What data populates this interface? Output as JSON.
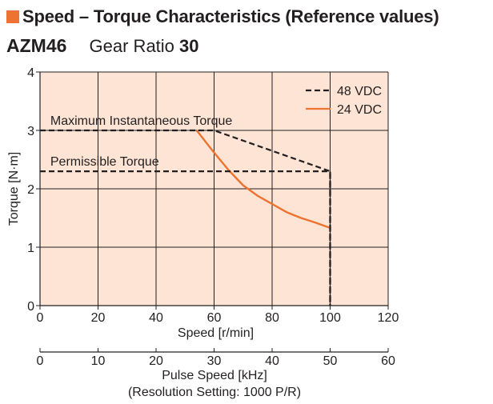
{
  "header": {
    "title": "Speed – Torque Characteristics (Reference values)",
    "model": "AZM46",
    "gear_label": "Gear Ratio",
    "gear_value": "30",
    "accent_color": "#ee7330"
  },
  "chart_data": {
    "type": "line",
    "xlabel": "Speed [r/min]",
    "ylabel": "Torque [N·m]",
    "xlim": [
      0,
      120
    ],
    "ylim": [
      0,
      4
    ],
    "x_ticks": [
      "0",
      "20",
      "40",
      "60",
      "80",
      "100",
      "120"
    ],
    "y_ticks": [
      "0",
      "1",
      "2",
      "3",
      "4"
    ],
    "secondary_x_axis": {
      "label": "Pulse Speed [kHz]",
      "note": "(Resolution Setting: 1000 P/R)",
      "lim": [
        0,
        60
      ],
      "ticks": [
        "0",
        "10",
        "20",
        "30",
        "40",
        "50",
        "60"
      ]
    },
    "grid": true,
    "legend_position": "top-right",
    "background_color": "#fde4d4",
    "annotations": [
      {
        "text": "Maximum Instantaneous Torque",
        "x": 3,
        "y": 3
      },
      {
        "text": "Permissible Torque",
        "x": 3,
        "y": 2.3
      }
    ],
    "series": [
      {
        "name": "48 VDC",
        "style": "dashed",
        "color": "#231f20",
        "x": [
          0,
          60,
          100,
          100
        ],
        "y": [
          3.0,
          3.0,
          2.3,
          0
        ]
      },
      {
        "name": "24 VDC",
        "style": "solid",
        "color": "#ee7330",
        "x": [
          54,
          60,
          65,
          70,
          75,
          80,
          85,
          90,
          95,
          100
        ],
        "y": [
          3.0,
          2.62,
          2.32,
          2.06,
          1.88,
          1.74,
          1.6,
          1.5,
          1.42,
          1.33
        ]
      },
      {
        "name": "",
        "style": "dashed",
        "color": "#231f20",
        "x": [
          0,
          100,
          100
        ],
        "y": [
          2.3,
          2.3,
          0
        ]
      }
    ]
  }
}
